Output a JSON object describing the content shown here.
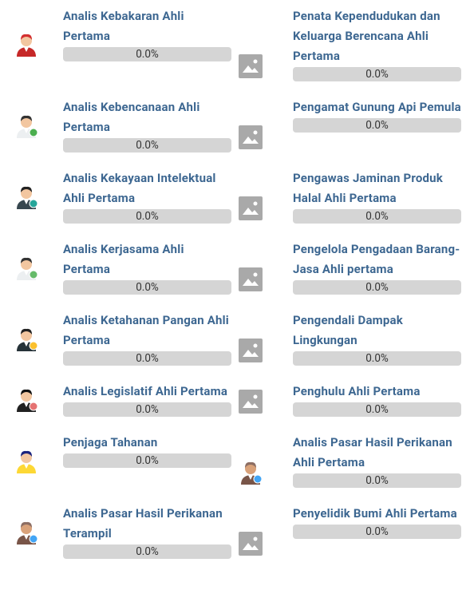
{
  "rows": [
    {
      "left": {
        "title": "Analis Kebakaran Ahli Pertama",
        "progress": "0.0%"
      },
      "right": {
        "title": "Penata Kependudukan dan Keluarga Berencana Ahli Pertama",
        "progress": "0.0%"
      }
    },
    {
      "left": {
        "title": "Analis Kebencanaan Ahli Pertama",
        "progress": "0.0%"
      },
      "right": {
        "title": "Pengamat Gunung Api Pemula",
        "progress": "0.0%"
      }
    },
    {
      "left": {
        "title": "Analis Kekayaan Intelektual Ahli Pertama",
        "progress": "0.0%"
      },
      "right": {
        "title": "Pengawas Jaminan Produk Halal Ahli Pertama",
        "progress": "0.0%"
      }
    },
    {
      "left": {
        "title": "Analis Kerjasama Ahli Pertama",
        "progress": "0.0%"
      },
      "right": {
        "title": "Pengelola Pengadaan Barang-Jasa Ahli pertama",
        "progress": "0.0%"
      }
    },
    {
      "left": {
        "title": "Analis Ketahanan Pangan Ahli Pertama",
        "progress": "0.0%"
      },
      "right": {
        "title": "Pengendali Dampak Lingkungan",
        "progress": "0.0%"
      }
    },
    {
      "left": {
        "title": "Analis Legislatif Ahli Pertama",
        "progress": "0.0%"
      },
      "right": {
        "title": "Penghulu Ahli Pertama",
        "progress": "0.0%"
      }
    },
    {
      "left": {
        "title": "Penjaga Tahanan",
        "progress": "0.0%"
      },
      "right": {
        "title": "Analis Pasar Hasil Perikanan Ahli Pertama",
        "progress": "0.0%"
      }
    },
    {
      "left": {
        "title": "Analis Pasar Hasil Perikanan Terampil",
        "progress": "0.0%"
      },
      "right": {
        "title": "Penyelidik Bumi Ahli Pertama",
        "progress": "0.0%"
      }
    }
  ]
}
